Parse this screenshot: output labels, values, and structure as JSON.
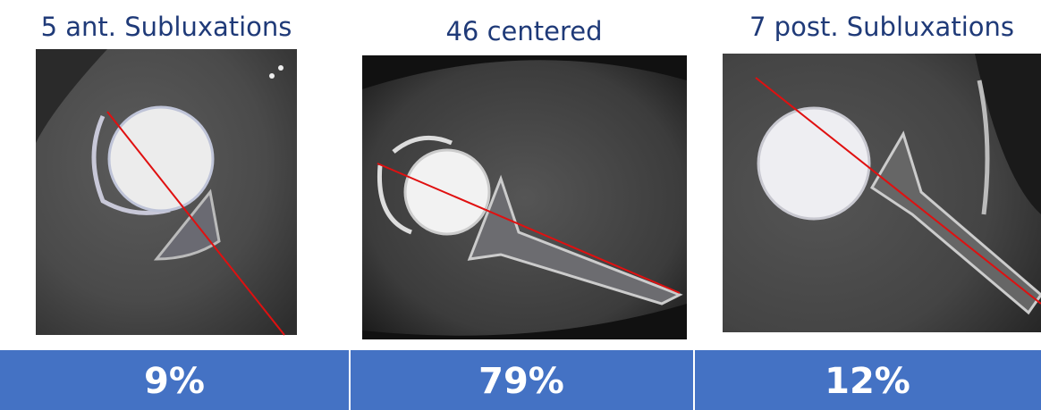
{
  "panels": [
    {
      "title": "5 ant. Subluxations",
      "percent": "9%"
    },
    {
      "title": "46 centered",
      "percent": "79%"
    },
    {
      "title": "7 post. Subluxations",
      "percent": "12%"
    }
  ]
}
